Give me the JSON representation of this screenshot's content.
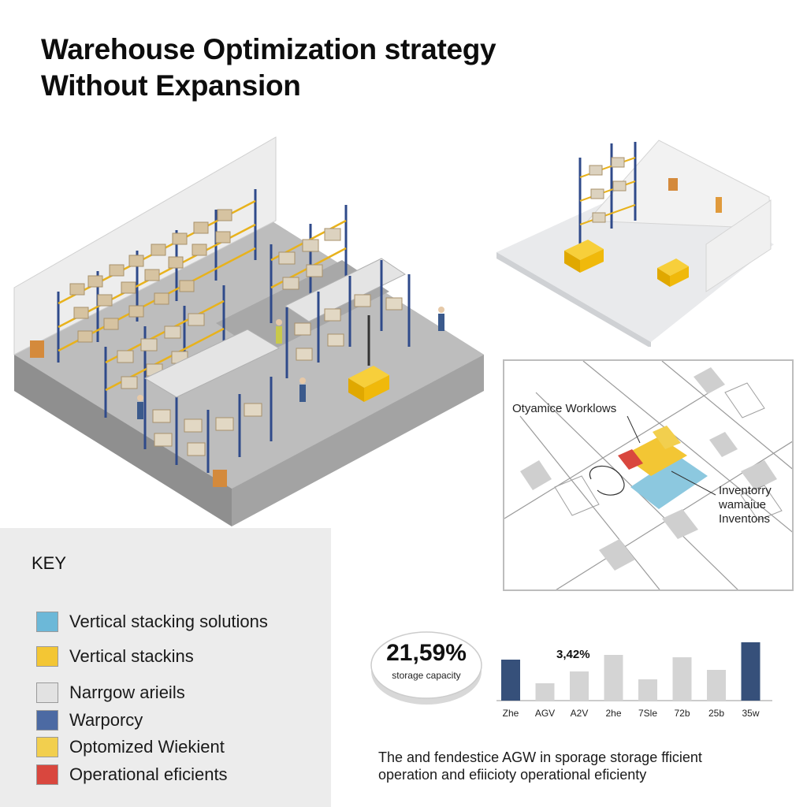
{
  "title": {
    "line1": "Warehouse Optimization strategy",
    "line2": "Without Expansion"
  },
  "map": {
    "label_workflows": "Otyamice Worklows",
    "label_inventory_1": "Inventorry",
    "label_inventory_2": "wamaiue",
    "label_inventory_3": "Inventons"
  },
  "key": {
    "title": "KEY",
    "items": [
      {
        "label": "Vertical stacking solutions",
        "color": "#6cb8d8"
      },
      {
        "label": "Vertical stackins",
        "color": "#f3c634"
      },
      {
        "label": "Narrgow arieils",
        "color": "#e2e2e2"
      },
      {
        "label": "Warporcy",
        "color": "#4c6aa3"
      },
      {
        "label": "Optomized Wiekient",
        "color": "#f2cf4e"
      },
      {
        "label": "Operational eficients",
        "color": "#d9473e"
      }
    ]
  },
  "stat": {
    "value": "21,59%",
    "label": "storage capacity"
  },
  "chart_data": {
    "type": "bar",
    "categories": [
      "Zhe",
      "AGV",
      "A2V",
      "2he",
      "7Sle",
      "72b",
      "25b",
      "35w"
    ],
    "values": [
      52,
      22,
      37,
      58,
      27,
      55,
      39,
      74
    ],
    "colors": [
      "#36507a",
      "#d4d4d4",
      "#d4d4d4",
      "#d4d4d4",
      "#d4d4d4",
      "#d4d4d4",
      "#d4d4d4",
      "#36507a"
    ],
    "annotation": "3,42%",
    "ylim": [
      0,
      80
    ],
    "title": "",
    "xlabel": "",
    "ylabel": ""
  },
  "caption": {
    "line1": "The and fendestice AGW in sporage storage fficient",
    "line2": "operation and efiicioty operational eficienty"
  },
  "colors": {
    "rack_blue": "#2f4a8a",
    "rack_beam": "#e8b21c",
    "agv_yellow": "#f0b90b",
    "floor_gray": "#b8b8b8"
  }
}
